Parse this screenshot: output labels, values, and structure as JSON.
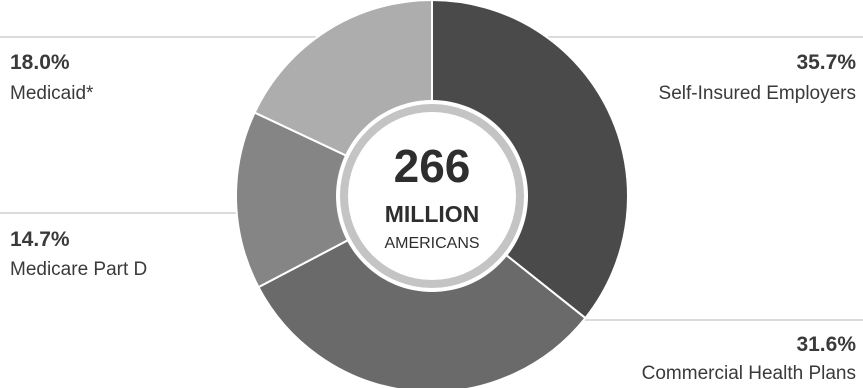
{
  "chart_data": {
    "type": "pie",
    "variant": "donut",
    "center": {
      "value": "266",
      "line2": "MILLION",
      "line3": "AMERICANS"
    },
    "slices": [
      {
        "percent_label": "35.7%",
        "value": 35.7,
        "label": "Self-Insured Employers",
        "color": "#4a4a4a"
      },
      {
        "percent_label": "31.6%",
        "value": 31.6,
        "label": "Commercial Health Plans",
        "color": "#6a6a6a"
      },
      {
        "percent_label": "14.7%",
        "value": 14.7,
        "label": "Medicare Part D",
        "color": "#858585"
      },
      {
        "percent_label": "18.0%",
        "value": 18.0,
        "label": "Medicaid*",
        "color": "#adadad"
      }
    ],
    "start_position": "top",
    "direction": "clockwise"
  },
  "colors": {
    "text": "#3a3a3a",
    "leader_line": "#cfcfcf",
    "center_ring": "#c4c4c4",
    "slice_separator": "#ffffff"
  }
}
